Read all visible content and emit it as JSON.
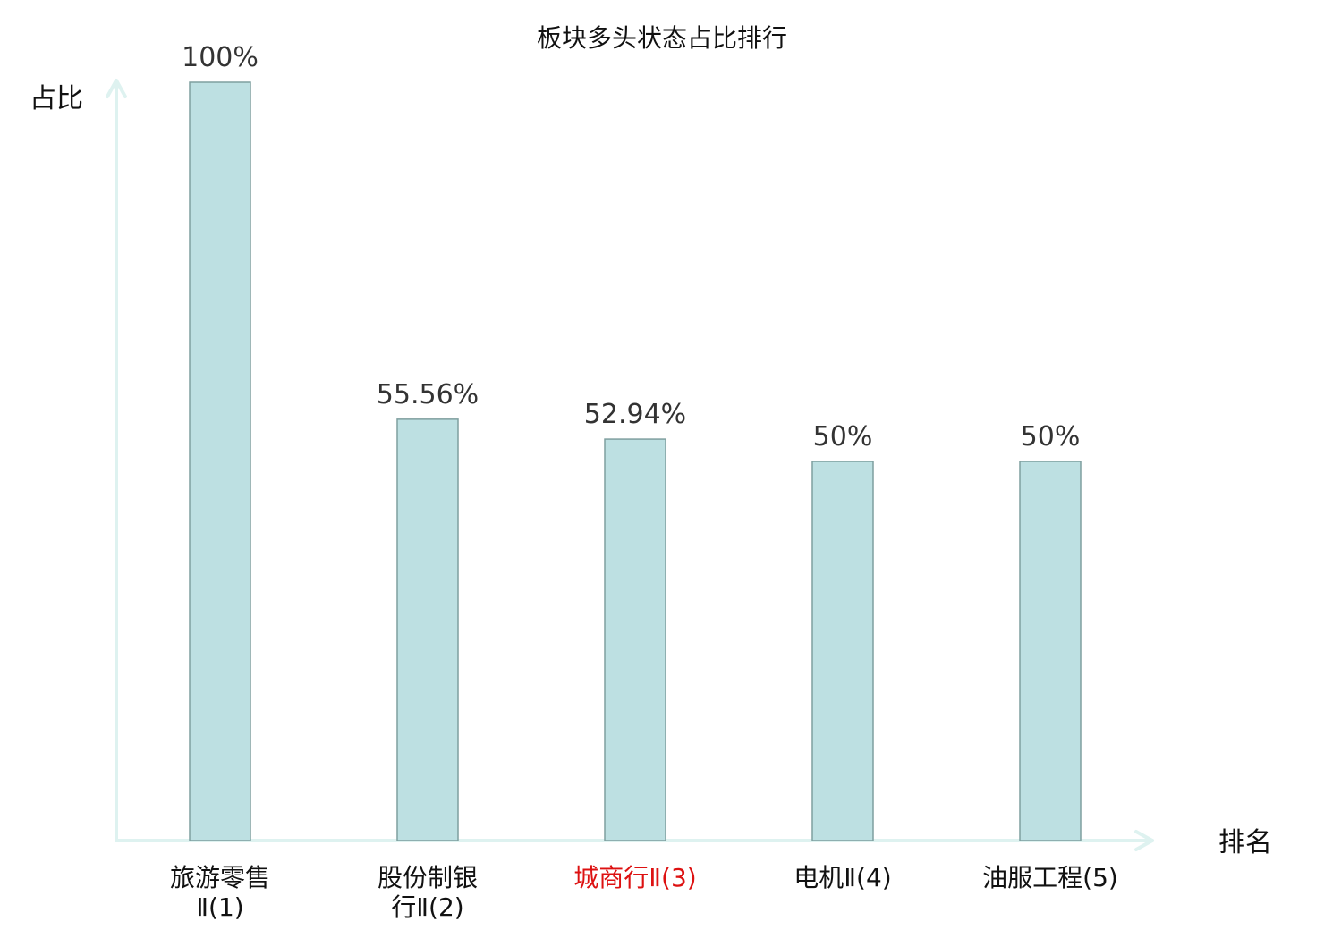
{
  "chart_data": {
    "type": "bar",
    "title": "板块多头状态占比排行",
    "xlabel": "排名",
    "ylabel": "占比",
    "categories": [
      "旅游零售Ⅱ(1)",
      "股份制银行Ⅱ(2)",
      "城商行Ⅱ(3)",
      "电机Ⅱ(4)",
      "油服工程(5)"
    ],
    "category_lines": [
      [
        "旅游零售",
        "Ⅱ(1)"
      ],
      [
        "股份制银",
        "行Ⅱ(2)"
      ],
      [
        "城商行Ⅱ(3)"
      ],
      [
        "电机Ⅱ(4)"
      ],
      [
        "油服工程(5)"
      ]
    ],
    "values": [
      100,
      55.56,
      52.94,
      50,
      50
    ],
    "value_labels": [
      "100%",
      "55.56%",
      "52.94%",
      "50%",
      "50%"
    ],
    "highlight_index": 2,
    "ylim": [
      0,
      100
    ],
    "grid": false,
    "colors": {
      "bar_fill": "#bde0e2",
      "bar_stroke": "#7f9f9f",
      "axis": "#def2f0",
      "highlight_text": "#dd1111"
    }
  }
}
